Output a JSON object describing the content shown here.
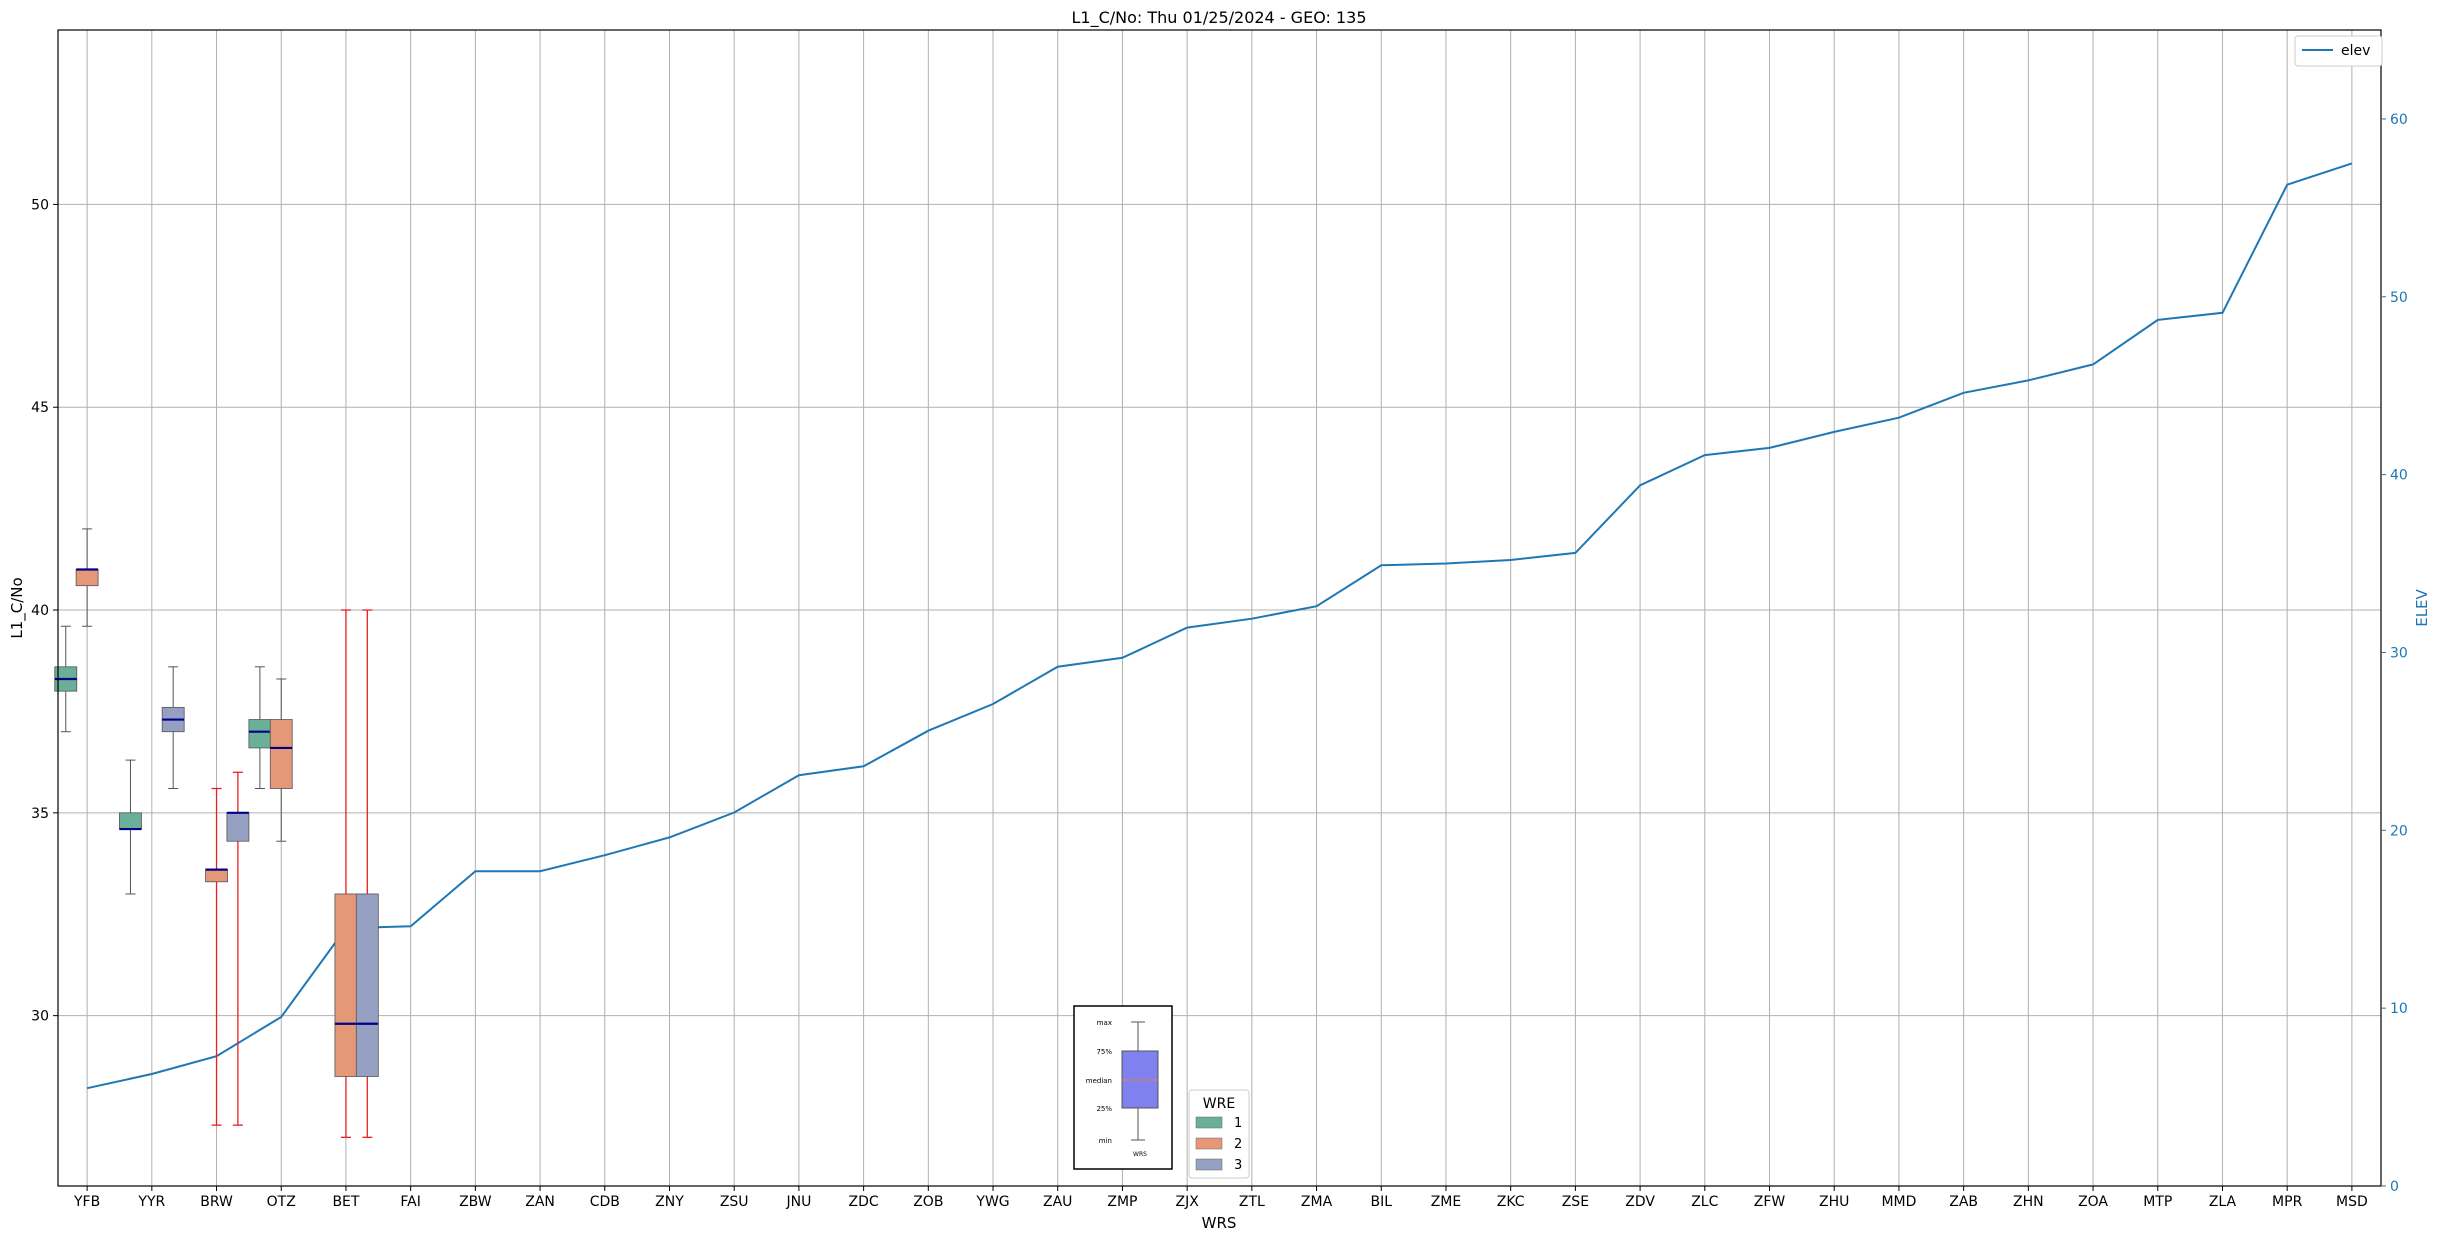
{
  "chart_data": {
    "type": "box",
    "title": "L1_C/No: Thu 01/25/2024 - GEO: 135",
    "xlabel": "WRS",
    "ylabel": "L1_C/No",
    "y2label": "ELEV",
    "ylim": [
      25.8,
      54.3
    ],
    "y2lim": [
      0,
      65
    ],
    "yticks": [
      30,
      35,
      40,
      45,
      50
    ],
    "y2ticks": [
      0,
      10,
      20,
      30,
      40,
      50,
      60
    ],
    "grid": true,
    "categories": [
      "YFB",
      "YYR",
      "BRW",
      "OTZ",
      "BET",
      "FAI",
      "ZBW",
      "ZAN",
      "CDB",
      "ZNY",
      "ZSU",
      "JNU",
      "ZDC",
      "ZOB",
      "YWG",
      "ZAU",
      "ZMP",
      "ZJX",
      "ZTL",
      "ZMA",
      "BIL",
      "ZME",
      "ZKC",
      "ZSE",
      "ZDV",
      "ZLC",
      "ZFW",
      "ZHU",
      "MMD",
      "ZAB",
      "ZHN",
      "ZOA",
      "MTP",
      "ZLA",
      "MPR",
      "MSD"
    ],
    "legend_wre": {
      "title": "WRE",
      "placement": "bottom-center",
      "entries": [
        {
          "label": "1",
          "color": "#6aaf98"
        },
        {
          "label": "2",
          "color": "#e49878"
        },
        {
          "label": "3",
          "color": "#95a0c2"
        }
      ]
    },
    "legend_line": {
      "label": "elev",
      "color": "#1f77b4",
      "placement": "top-right"
    },
    "inset_labels": {
      "max": "max",
      "q3": "75%",
      "median": "median",
      "q1": "25%",
      "min": "min",
      "xlabel": "WRS"
    },
    "elev": [
      5.5,
      6.3,
      7.3,
      9.5,
      14.5,
      14.6,
      17.7,
      17.7,
      18.6,
      19.6,
      21.0,
      23.1,
      23.6,
      25.6,
      27.1,
      29.2,
      29.7,
      31.4,
      31.9,
      32.6,
      34.9,
      35.0,
      35.2,
      35.6,
      39.4,
      41.1,
      41.5,
      42.4,
      43.2,
      44.6,
      45.3,
      46.2,
      48.7,
      49.1,
      56.3,
      57.5
    ],
    "boxes": [
      {
        "cat": "YFB",
        "wre": 1,
        "min": 37.0,
        "q1": 38.0,
        "median": 38.3,
        "q3": 38.6,
        "max": 39.6
      },
      {
        "cat": "YFB",
        "wre": 2,
        "min": 39.6,
        "q1": 40.6,
        "median": 41.0,
        "q3": 41.0,
        "max": 42.0
      },
      {
        "cat": "YYR",
        "wre": 1,
        "min": 33.0,
        "q1": 34.6,
        "median": 34.6,
        "q3": 35.0,
        "max": 36.3
      },
      {
        "cat": "YYR",
        "wre": 3,
        "min": 35.6,
        "q1": 37.0,
        "median": 37.3,
        "q3": 37.6,
        "max": 38.6
      },
      {
        "cat": "BRW",
        "wre": 2,
        "min": 27.3,
        "q1": 33.3,
        "median": 33.6,
        "q3": 33.6,
        "max": 35.6,
        "red_whisker": true
      },
      {
        "cat": "BRW",
        "wre": 3,
        "min": 27.3,
        "q1": 34.3,
        "median": 35.0,
        "q3": 35.0,
        "max": 36.0,
        "red_whisker": true
      },
      {
        "cat": "OTZ",
        "wre": 1,
        "min": 35.6,
        "q1": 36.6,
        "median": 37.0,
        "q3": 37.3,
        "max": 38.6
      },
      {
        "cat": "OTZ",
        "wre": 2,
        "min": 34.3,
        "q1": 35.6,
        "median": 36.6,
        "q3": 37.3,
        "max": 38.3
      },
      {
        "cat": "BET",
        "wre": 2,
        "min": 27.0,
        "q1": 28.5,
        "median": 29.8,
        "q3": 33.0,
        "max": 40.0,
        "red_whisker": true
      },
      {
        "cat": "BET",
        "wre": 3,
        "min": 27.0,
        "q1": 28.5,
        "median": 29.8,
        "q3": 33.0,
        "max": 40.0,
        "red_whisker": true
      }
    ]
  }
}
